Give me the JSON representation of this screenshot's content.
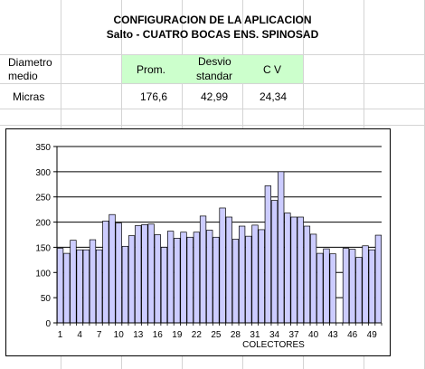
{
  "sheet": {
    "title_line1": "CONFIGURACION DE LA APLICACION",
    "title_line2": "Salto - CUATRO BOCAS ENS. SPINOSAD",
    "row_label_1_line1": "Diametro",
    "row_label_1_line2": "medio",
    "row_label_2": "Micras",
    "header_prom": "Prom.",
    "header_desvio_line1": "Desvio",
    "header_desvio_line2": "standar",
    "header_cv": "C V",
    "value_prom": "176,6",
    "value_desvio": "42,99",
    "value_cv": "24,34",
    "header_fill_color": "#ccffcc"
  },
  "chart_data": {
    "type": "bar",
    "xlabel": "COLECTORES",
    "ylabel": "",
    "ylim": [
      0,
      350
    ],
    "yticks": [
      "0",
      "50",
      "100",
      "150",
      "200",
      "250",
      "300",
      "350"
    ],
    "xtick_labels": [
      "1",
      "4",
      "7",
      "10",
      "13",
      "16",
      "19",
      "22",
      "25",
      "28",
      "31",
      "34",
      "37",
      "40",
      "43",
      "46",
      "49"
    ],
    "grid": true,
    "legend": "none",
    "bar_color": "#ccccff",
    "categories": [
      1,
      2,
      3,
      4,
      5,
      6,
      7,
      8,
      9,
      10,
      11,
      12,
      13,
      14,
      15,
      16,
      17,
      18,
      19,
      20,
      21,
      22,
      23,
      24,
      25,
      26,
      27,
      28,
      29,
      30,
      31,
      32,
      33,
      34,
      35,
      36,
      37,
      38,
      39,
      40,
      41,
      42,
      43,
      44,
      45,
      46,
      47,
      48,
      49,
      50
    ],
    "values": [
      148,
      138,
      164,
      145,
      145,
      165,
      145,
      202,
      215,
      198,
      152,
      173,
      193,
      195,
      196,
      175,
      150,
      182,
      168,
      180,
      170,
      180,
      212,
      184,
      170,
      228,
      210,
      166,
      192,
      172,
      194,
      185,
      272,
      243,
      300,
      218,
      210,
      210,
      192,
      176,
      138,
      147,
      137,
      null,
      148,
      146,
      130,
      153,
      145,
      174
    ]
  }
}
